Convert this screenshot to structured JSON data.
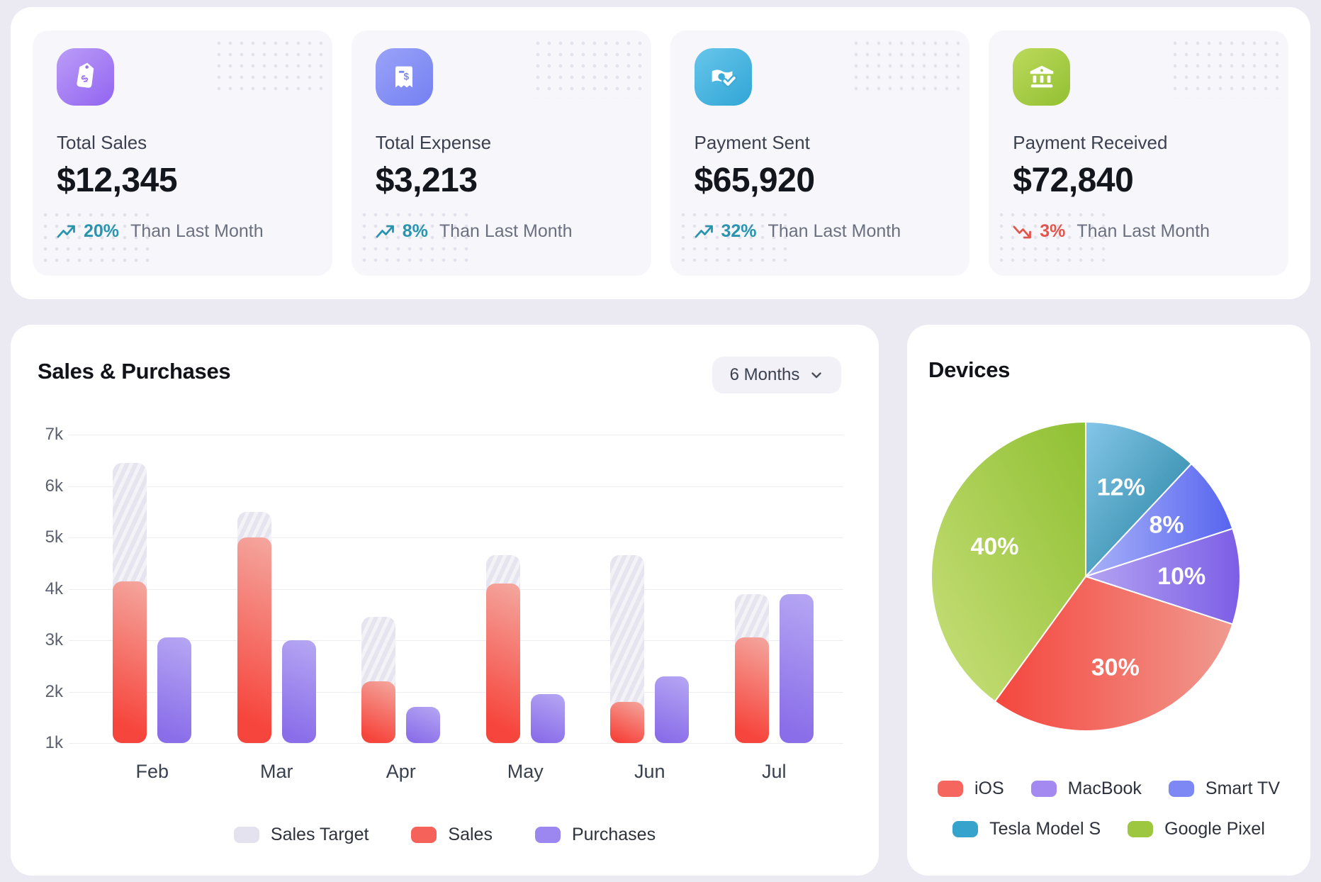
{
  "stats": {
    "cards": [
      {
        "label": "Total Sales",
        "value": "$12,345",
        "delta": "20%",
        "direction": "up",
        "suffix": "Than Last Month",
        "icon": "tag-icon"
      },
      {
        "label": "Total Expense",
        "value": "$3,213",
        "delta": "8%",
        "direction": "up",
        "suffix": "Than Last Month",
        "icon": "receipt-icon"
      },
      {
        "label": "Payment Sent",
        "value": "$65,920",
        "delta": "32%",
        "direction": "up",
        "suffix": "Than Last Month",
        "icon": "cash-check-icon"
      },
      {
        "label": "Payment Received",
        "value": "$72,840",
        "delta": "3%",
        "direction": "down",
        "suffix": "Than Last Month",
        "icon": "bank-icon"
      }
    ],
    "delta_up_color": "#2795b0",
    "delta_down_color": "#e4544b"
  },
  "chart_data": [
    {
      "id": "sales-purchases",
      "type": "bar",
      "title": "Sales & Purchases",
      "period_selector": "6 Months",
      "categories": [
        "Feb",
        "Mar",
        "Apr",
        "May",
        "Jun",
        "Jul"
      ],
      "series": [
        {
          "name": "Sales Target",
          "values": [
            6450,
            5500,
            3450,
            4650,
            4650,
            3900
          ],
          "legend_color": "#e3e2ee"
        },
        {
          "name": "Sales",
          "values": [
            4150,
            5000,
            2200,
            4100,
            1800,
            3050
          ],
          "legend_color": "#f4625a"
        },
        {
          "name": "Purchases",
          "values": [
            3050,
            3000,
            1700,
            1950,
            2300,
            3900
          ],
          "legend_color": "#9c86ef"
        }
      ],
      "y_ticks": [
        "7k",
        "6k",
        "5k",
        "4k",
        "3k",
        "2k",
        "1k"
      ],
      "y_min": 1000,
      "y_max": 7000,
      "grid": true,
      "legend_position": "bottom"
    },
    {
      "id": "devices",
      "type": "pie",
      "title": "Devices",
      "slices": [
        {
          "name": "Tesla Model S",
          "value": 12,
          "label": "12%",
          "color_from": "#84c6e9",
          "color_to": "#1f7e9c",
          "grad": "diag"
        },
        {
          "name": "Smart TV",
          "value": 8,
          "label": "8%",
          "color_from": "#a9b2f8",
          "color_to": "#5765ef",
          "grad": "horiz"
        },
        {
          "name": "MacBook",
          "value": 10,
          "label": "10%",
          "color_from": "#b4a4f2",
          "color_to": "#7c5ee6",
          "grad": "horiz"
        },
        {
          "name": "iOS",
          "value": 30,
          "label": "30%",
          "color_from": "#f5463d",
          "color_to": "#f09a90",
          "grad": "horiz"
        },
        {
          "name": "Google Pixel",
          "value": 40,
          "label": "40%",
          "color_from": "#8fc032",
          "color_to": "#c9df7b",
          "grad": "diag-rev"
        }
      ],
      "start_at": "top",
      "direction": "clockwise",
      "legend_rows": [
        [
          "iOS",
          "MacBook",
          "Smart TV"
        ],
        [
          "Tesla Model S",
          "Google Pixel"
        ]
      ],
      "legend_colors": {
        "iOS": "#f4665e",
        "MacBook": "#a489f0",
        "Smart TV": "#7e88f5",
        "Tesla Model S": "#36a3cc",
        "Google Pixel": "#9dc73e"
      }
    }
  ]
}
